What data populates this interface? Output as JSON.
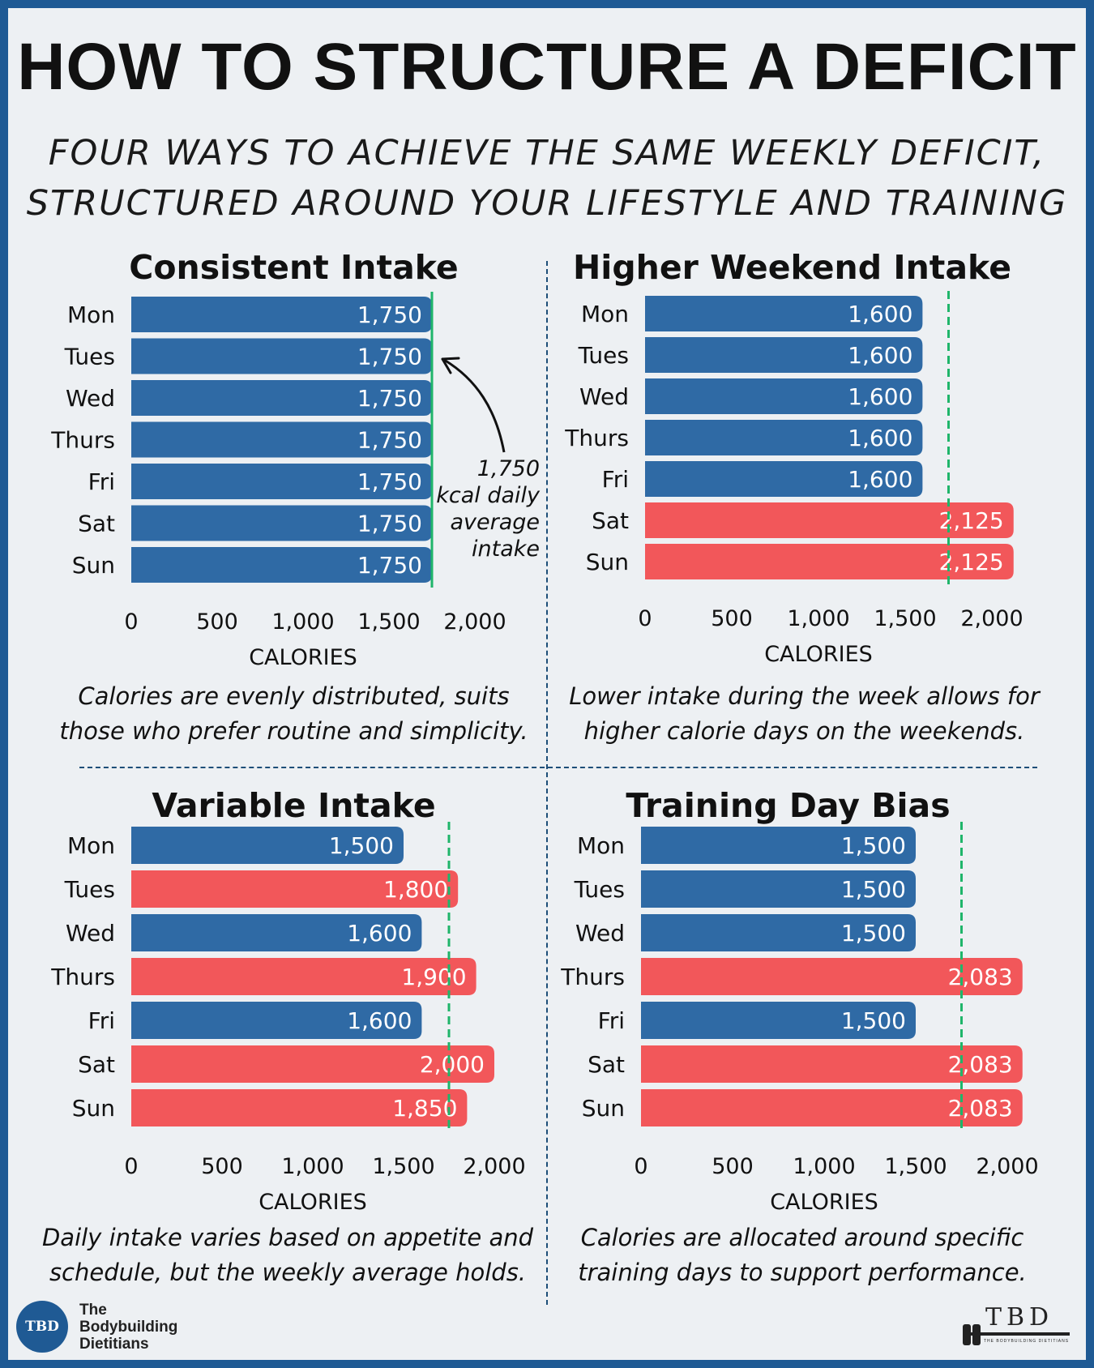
{
  "header": {
    "title": "HOW TO STRUCTURE A DEFICIT",
    "subtitle_line1": "FOUR WAYS TO ACHIEVE THE SAME WEEKLY DEFICIT,",
    "subtitle_line2": "STRUCTURED AROUND YOUR LIFESTYLE AND TRAINING"
  },
  "colors": {
    "blue": "#2f6aa5",
    "red": "#f2575a",
    "average_line": "#1fb56a",
    "frame": "#1f5a94"
  },
  "chart_data": [
    {
      "type": "bar",
      "orientation": "horizontal",
      "title": "Consistent Intake",
      "xlabel": "CALORIES",
      "categories": [
        "Mon",
        "Tues",
        "Wed",
        "Thurs",
        "Fri",
        "Sat",
        "Sun"
      ],
      "values": [
        1750,
        1750,
        1750,
        1750,
        1750,
        1750,
        1750
      ],
      "value_labels": [
        "1,750",
        "1,750",
        "1,750",
        "1,750",
        "1,750",
        "1,750",
        "1,750"
      ],
      "bar_colors": [
        "blue",
        "blue",
        "blue",
        "blue",
        "blue",
        "blue",
        "blue"
      ],
      "xlim": [
        0,
        2000
      ],
      "xticks": [
        0,
        500,
        1000,
        1500,
        2000
      ],
      "xtick_labels": [
        "0",
        "500",
        "1,000",
        "1,500",
        "2,000"
      ],
      "reference_line": 1750,
      "caption_line1": "Calories are evenly distributed, suits",
      "caption_line2": "those who prefer routine and simplicity.",
      "annotation": [
        "1,750",
        "kcal daily",
        "average",
        "intake"
      ]
    },
    {
      "type": "bar",
      "orientation": "horizontal",
      "title": "Higher Weekend Intake",
      "xlabel": "CALORIES",
      "categories": [
        "Mon",
        "Tues",
        "Wed",
        "Thurs",
        "Fri",
        "Sat",
        "Sun"
      ],
      "values": [
        1600,
        1600,
        1600,
        1600,
        1600,
        2125,
        2125
      ],
      "value_labels": [
        "1,600",
        "1,600",
        "1,600",
        "1,600",
        "1,600",
        "2,125",
        "2,125"
      ],
      "bar_colors": [
        "blue",
        "blue",
        "blue",
        "blue",
        "blue",
        "red",
        "red"
      ],
      "xlim": [
        0,
        2000
      ],
      "xticks": [
        0,
        500,
        1000,
        1500,
        2000
      ],
      "xtick_labels": [
        "0",
        "500",
        "1,000",
        "1,500",
        "2,000"
      ],
      "reference_line": 1750,
      "caption_line1": "Lower intake during the week allows for",
      "caption_line2": "higher calorie days on the weekends."
    },
    {
      "type": "bar",
      "orientation": "horizontal",
      "title": "Variable Intake",
      "xlabel": "CALORIES",
      "categories": [
        "Mon",
        "Tues",
        "Wed",
        "Thurs",
        "Fri",
        "Sat",
        "Sun"
      ],
      "values": [
        1500,
        1800,
        1600,
        1900,
        1600,
        2000,
        1850
      ],
      "value_labels": [
        "1,500",
        "1,800",
        "1,600",
        "1,900",
        "1,600",
        "2,000",
        "1,850"
      ],
      "bar_colors": [
        "blue",
        "red",
        "blue",
        "red",
        "blue",
        "red",
        "red"
      ],
      "xlim": [
        0,
        2000
      ],
      "xticks": [
        0,
        500,
        1000,
        1500,
        2000
      ],
      "xtick_labels": [
        "0",
        "500",
        "1,000",
        "1,500",
        "2,000"
      ],
      "reference_line": 1750,
      "caption_line1": "Daily intake varies based on appetite and",
      "caption_line2": "schedule, but the weekly average holds."
    },
    {
      "type": "bar",
      "orientation": "horizontal",
      "title": "Training Day Bias",
      "xlabel": "CALORIES",
      "categories": [
        "Mon",
        "Tues",
        "Wed",
        "Thurs",
        "Fri",
        "Sat",
        "Sun"
      ],
      "values": [
        1500,
        1500,
        1500,
        2083,
        1500,
        2083,
        2083
      ],
      "value_labels": [
        "1,500",
        "1,500",
        "1,500",
        "2,083",
        "1,500",
        "2,083",
        "2,083"
      ],
      "bar_colors": [
        "blue",
        "blue",
        "blue",
        "red",
        "blue",
        "red",
        "red"
      ],
      "xlim": [
        0,
        2000
      ],
      "xticks": [
        0,
        500,
        1000,
        1500,
        2000
      ],
      "xtick_labels": [
        "0",
        "500",
        "1,000",
        "1,500",
        "2,000"
      ],
      "reference_line": 1750,
      "caption_line1": "Calories are allocated around specific",
      "caption_line2": "training days to support performance."
    }
  ],
  "branding": {
    "left_logo": "TBD",
    "left_name_line1": "The",
    "left_name_line2": "Bodybuilding",
    "left_name_line3": "Dietitians",
    "right_logo": "TBD",
    "right_tagline": "THE BODYBUILDING DIETITIANS"
  }
}
